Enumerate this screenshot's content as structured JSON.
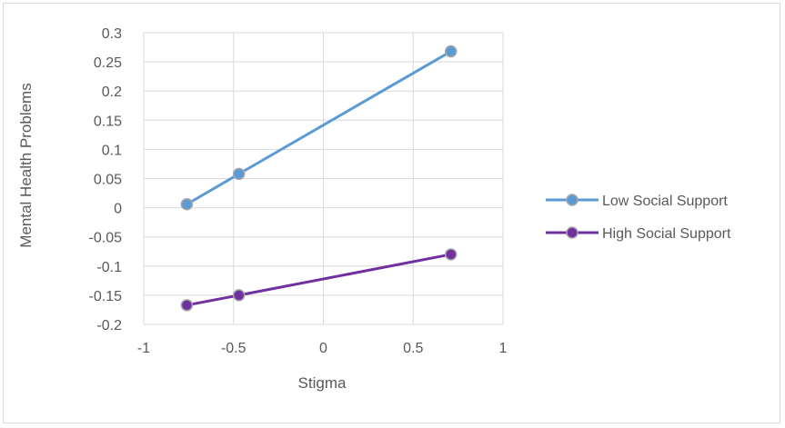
{
  "chart_data": {
    "type": "line",
    "title": "",
    "xlabel": "Stigma",
    "ylabel": "Mental Health Problems",
    "xlim": [
      -1,
      1
    ],
    "ylim": [
      -0.2,
      0.3
    ],
    "x_ticks": [
      "-1",
      "-0.5",
      "0",
      "0.5",
      "1"
    ],
    "y_ticks": [
      "0.3",
      "0.25",
      "0.2",
      "0.15",
      "0.1",
      "0.05",
      "0",
      "-0.05",
      "-0.1",
      "-0.15",
      "-0.2"
    ],
    "grid": true,
    "legend_position": "right",
    "series": [
      {
        "name": "Low Social Support",
        "color": "#5b9bd5",
        "x": [
          -0.76,
          -0.47,
          0.71
        ],
        "y": [
          0.006,
          0.058,
          0.268
        ]
      },
      {
        "name": "High Social Support",
        "color": "#7030a0",
        "x": [
          -0.76,
          -0.47,
          0.71
        ],
        "y": [
          -0.167,
          -0.15,
          -0.08
        ]
      }
    ]
  }
}
